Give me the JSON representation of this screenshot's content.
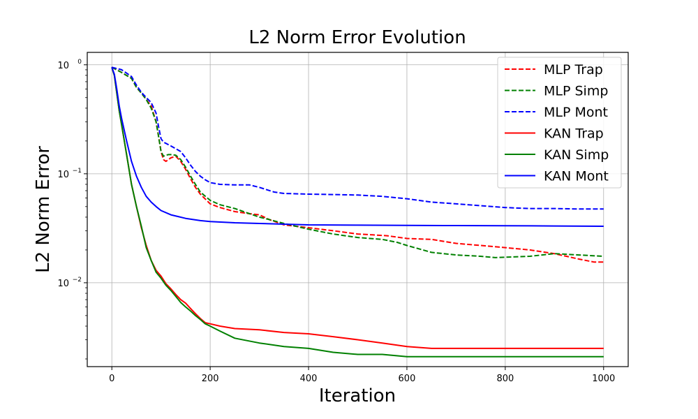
{
  "chart_data": {
    "type": "line",
    "title": "L2 Norm Error Evolution",
    "xlabel": "Iteration",
    "ylabel": "L2 Norm Error",
    "yscale": "log",
    "xlim": [
      -50,
      1050
    ],
    "ylim": [
      0.0017,
      1.3
    ],
    "xticks": [
      0,
      200,
      400,
      600,
      800,
      1000
    ],
    "yticks": [
      {
        "value": 1,
        "base": "10",
        "exp": "0"
      },
      {
        "value": 0.1,
        "base": "10",
        "exp": "−1"
      },
      {
        "value": 0.01,
        "base": "10",
        "exp": "−2"
      }
    ],
    "grid": true,
    "legend_position": "top-right",
    "series": [
      {
        "name": "MLP Trap",
        "color": "#ff0000",
        "style": "dashed",
        "x": [
          0,
          20,
          40,
          50,
          60,
          70,
          80,
          90,
          95,
          100,
          105,
          110,
          115,
          120,
          130,
          140,
          150,
          160,
          170,
          180,
          200,
          220,
          250,
          280,
          300,
          320,
          350,
          400,
          450,
          500,
          530,
          560,
          600,
          650,
          700,
          750,
          800,
          850,
          900,
          950,
          980,
          1000
        ],
        "y": [
          0.95,
          0.85,
          0.75,
          0.62,
          0.55,
          0.48,
          0.42,
          0.3,
          0.22,
          0.16,
          0.135,
          0.13,
          0.135,
          0.14,
          0.145,
          0.13,
          0.11,
          0.09,
          0.075,
          0.065,
          0.053,
          0.049,
          0.045,
          0.043,
          0.042,
          0.038,
          0.034,
          0.032,
          0.03,
          0.028,
          0.0275,
          0.027,
          0.0255,
          0.025,
          0.023,
          0.022,
          0.021,
          0.02,
          0.0185,
          0.0165,
          0.0155,
          0.0155
        ]
      },
      {
        "name": "MLP Simp",
        "color": "#008000",
        "style": "dashed",
        "x": [
          0,
          20,
          40,
          50,
          60,
          70,
          80,
          90,
          95,
          100,
          105,
          110,
          115,
          120,
          130,
          140,
          150,
          160,
          170,
          180,
          200,
          220,
          250,
          280,
          300,
          320,
          350,
          400,
          450,
          500,
          550,
          580,
          600,
          650,
          700,
          750,
          780,
          850,
          900,
          950,
          1000
        ],
        "y": [
          0.95,
          0.85,
          0.75,
          0.62,
          0.55,
          0.48,
          0.4,
          0.3,
          0.22,
          0.16,
          0.145,
          0.148,
          0.15,
          0.15,
          0.148,
          0.135,
          0.115,
          0.095,
          0.08,
          0.068,
          0.057,
          0.052,
          0.048,
          0.043,
          0.04,
          0.038,
          0.035,
          0.031,
          0.028,
          0.026,
          0.025,
          0.0235,
          0.022,
          0.019,
          0.018,
          0.0175,
          0.017,
          0.0175,
          0.0185,
          0.018,
          0.0175
        ]
      },
      {
        "name": "MLP Mont",
        "color": "#0000ff",
        "style": "dashed",
        "x": [
          0,
          20,
          40,
          50,
          60,
          70,
          80,
          90,
          95,
          100,
          105,
          110,
          120,
          130,
          140,
          150,
          160,
          170,
          180,
          190,
          200,
          220,
          250,
          280,
          300,
          330,
          350,
          400,
          450,
          500,
          550,
          600,
          650,
          700,
          750,
          800,
          850,
          900,
          950,
          1000
        ],
        "y": [
          0.95,
          0.9,
          0.78,
          0.65,
          0.56,
          0.5,
          0.45,
          0.36,
          0.27,
          0.21,
          0.195,
          0.19,
          0.18,
          0.17,
          0.16,
          0.14,
          0.12,
          0.105,
          0.095,
          0.088,
          0.083,
          0.08,
          0.079,
          0.079,
          0.075,
          0.068,
          0.066,
          0.065,
          0.0645,
          0.0638,
          0.062,
          0.059,
          0.055,
          0.053,
          0.051,
          0.049,
          0.048,
          0.048,
          0.0475,
          0.0475
        ]
      },
      {
        "name": "KAN Trap",
        "color": "#ff0000",
        "style": "solid",
        "x": [
          0,
          5,
          10,
          15,
          20,
          30,
          40,
          50,
          60,
          70,
          80,
          90,
          100,
          110,
          120,
          130,
          140,
          150,
          160,
          170,
          180,
          190,
          200,
          220,
          250,
          300,
          350,
          400,
          450,
          500,
          550,
          600,
          650,
          700,
          800,
          900,
          1000
        ],
        "y": [
          0.95,
          0.8,
          0.55,
          0.38,
          0.28,
          0.15,
          0.08,
          0.05,
          0.032,
          0.022,
          0.016,
          0.013,
          0.0115,
          0.0098,
          0.0088,
          0.0078,
          0.007,
          0.0065,
          0.0058,
          0.0052,
          0.0047,
          0.0043,
          0.0042,
          0.004,
          0.0038,
          0.0037,
          0.0035,
          0.0034,
          0.0032,
          0.003,
          0.0028,
          0.0026,
          0.0025,
          0.0025,
          0.0025,
          0.0025,
          0.0025
        ]
      },
      {
        "name": "KAN Simp",
        "color": "#008000",
        "style": "solid",
        "x": [
          0,
          5,
          10,
          15,
          20,
          30,
          40,
          50,
          60,
          70,
          80,
          90,
          100,
          110,
          120,
          130,
          140,
          150,
          160,
          170,
          180,
          190,
          200,
          220,
          250,
          300,
          350,
          400,
          450,
          500,
          550,
          600,
          700,
          800,
          900,
          1000
        ],
        "y": [
          0.95,
          0.8,
          0.55,
          0.38,
          0.28,
          0.15,
          0.08,
          0.05,
          0.033,
          0.021,
          0.016,
          0.0125,
          0.011,
          0.0095,
          0.0085,
          0.0075,
          0.0066,
          0.006,
          0.0055,
          0.005,
          0.0046,
          0.0042,
          0.004,
          0.0036,
          0.0031,
          0.0028,
          0.0026,
          0.0025,
          0.0023,
          0.0022,
          0.0022,
          0.0021,
          0.0021,
          0.0021,
          0.0021,
          0.0021
        ]
      },
      {
        "name": "KAN Mont",
        "color": "#0000ff",
        "style": "solid",
        "x": [
          0,
          5,
          10,
          15,
          20,
          30,
          40,
          50,
          60,
          70,
          80,
          90,
          100,
          120,
          150,
          180,
          200,
          250,
          300,
          350,
          400,
          500,
          600,
          700,
          800,
          900,
          1000
        ],
        "y": [
          0.95,
          0.82,
          0.6,
          0.42,
          0.32,
          0.2,
          0.13,
          0.095,
          0.075,
          0.062,
          0.055,
          0.05,
          0.046,
          0.042,
          0.039,
          0.0372,
          0.0365,
          0.0355,
          0.035,
          0.0345,
          0.034,
          0.0338,
          0.0336,
          0.0335,
          0.0334,
          0.0332,
          0.033
        ]
      }
    ]
  }
}
